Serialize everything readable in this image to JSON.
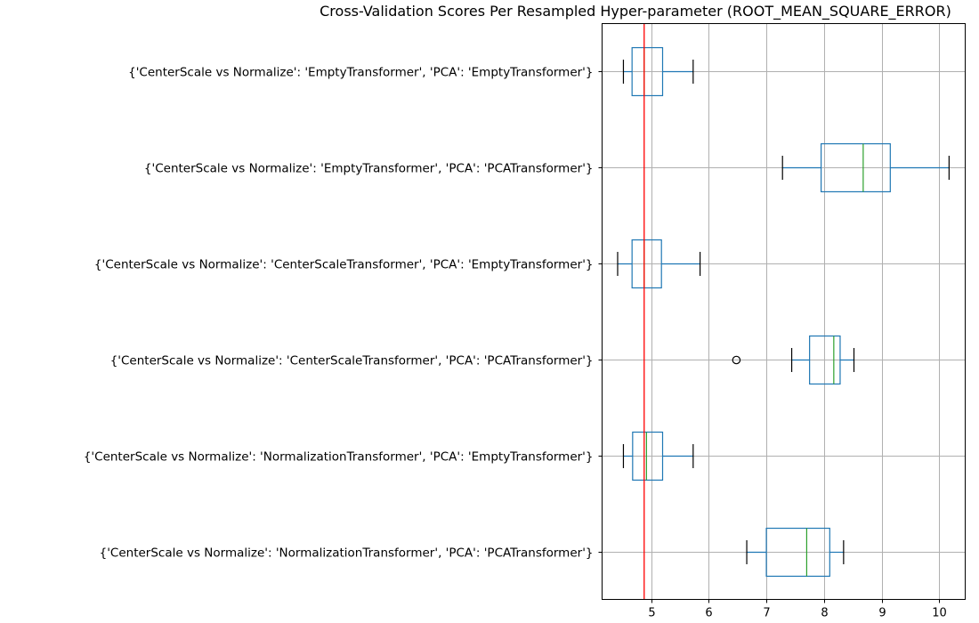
{
  "chart_data": {
    "type": "box",
    "orientation": "horizontal",
    "title": "Cross-Validation Scores Per Resampled Hyper-parameter (ROOT_MEAN_SQUARE_ERROR)",
    "xlabel": "",
    "ylabel": "",
    "xlim": [
      4.15,
      10.45
    ],
    "xticks": [
      5,
      6,
      7,
      8,
      9,
      10
    ],
    "grid": true,
    "best_score_line": {
      "value": 4.88,
      "color": "#ff0000"
    },
    "highlight_color": "#ff0000",
    "box_color": "#1f77b4",
    "median_color": "#2ca02c",
    "series": [
      {
        "label": "{'CenterScale vs Normalize': 'EmptyTransformer', 'PCA': 'EmptyTransformer'}",
        "whisker_low": 4.52,
        "q1": 4.67,
        "median": 4.88,
        "q3": 5.2,
        "whisker_high": 5.73,
        "outliers": [],
        "highlighted": false
      },
      {
        "label": "{'CenterScale vs Normalize': 'EmptyTransformer', 'PCA': 'PCATransformer'}",
        "whisker_low": 7.28,
        "q1": 7.95,
        "median": 8.68,
        "q3": 9.15,
        "whisker_high": 10.17,
        "outliers": [],
        "highlighted": false
      },
      {
        "label": "{'CenterScale vs Normalize': 'CenterScaleTransformer', 'PCA': 'EmptyTransformer'}",
        "whisker_low": 4.42,
        "q1": 4.67,
        "median": 4.88,
        "q3": 5.18,
        "whisker_high": 5.85,
        "outliers": [],
        "highlighted": true
      },
      {
        "label": "{'CenterScale vs Normalize': 'CenterScaleTransformer', 'PCA': 'PCATransformer'}",
        "whisker_low": 7.44,
        "q1": 7.75,
        "median": 8.17,
        "q3": 8.28,
        "whisker_high": 8.52,
        "outliers": [
          6.48
        ],
        "highlighted": false
      },
      {
        "label": "{'CenterScale vs Normalize': 'NormalizationTransformer', 'PCA': 'EmptyTransformer'}",
        "whisker_low": 4.52,
        "q1": 4.68,
        "median": 4.92,
        "q3": 5.2,
        "whisker_high": 5.73,
        "outliers": [],
        "highlighted": false
      },
      {
        "label": "{'CenterScale vs Normalize': 'NormalizationTransformer', 'PCA': 'PCATransformer'}",
        "whisker_low": 6.66,
        "q1": 7.0,
        "median": 7.7,
        "q3": 8.1,
        "whisker_high": 8.34,
        "outliers": [],
        "highlighted": false
      }
    ]
  }
}
